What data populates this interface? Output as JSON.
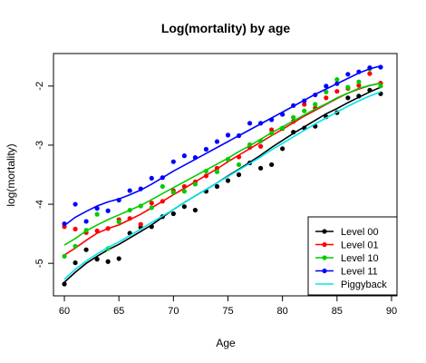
{
  "chart_data": {
    "type": "scatter",
    "title": "Log(mortality) by age",
    "xlabel": "Age",
    "ylabel": "log(mortality)",
    "xlim": [
      59.0,
      90.5
    ],
    "ylim": [
      -5.55,
      -1.45
    ],
    "x_ticks": [
      60,
      65,
      70,
      75,
      80,
      85,
      90
    ],
    "y_ticks": [
      -5,
      -4,
      -3,
      -2
    ],
    "grid": false,
    "legend_position": "bottom-right",
    "series": [
      {
        "name": "Level 00",
        "color": "#000000",
        "points": {
          "x": [
            60,
            61,
            62,
            63,
            64,
            65,
            66,
            67,
            68,
            69,
            70,
            71,
            72,
            73,
            74,
            75,
            76,
            77,
            78,
            79,
            80,
            81,
            82,
            83,
            84,
            85,
            86,
            87,
            88,
            89
          ],
          "y": [
            -5.35,
            -4.99,
            -4.77,
            -4.93,
            -4.97,
            -4.92,
            -4.49,
            -4.39,
            -4.38,
            -4.21,
            -4.16,
            -4.04,
            -4.1,
            -3.78,
            -3.7,
            -3.6,
            -3.5,
            -3.3,
            -3.39,
            -3.33,
            -3.06,
            -2.78,
            -2.71,
            -2.68,
            -2.52,
            -2.45,
            -2.2,
            -2.17,
            -2.07,
            -2.13
          ]
        },
        "line": {
          "x": [
            60,
            61,
            62,
            63,
            64,
            65,
            66,
            67,
            68,
            69,
            70,
            71,
            72,
            73,
            74,
            75,
            76,
            77,
            78,
            79,
            80,
            81,
            82,
            83,
            84,
            85,
            86,
            87,
            88,
            89
          ],
          "y": [
            -5.32,
            -5.15,
            -5.0,
            -4.88,
            -4.77,
            -4.68,
            -4.57,
            -4.46,
            -4.35,
            -4.22,
            -4.09,
            -3.97,
            -3.86,
            -3.75,
            -3.64,
            -3.52,
            -3.41,
            -3.29,
            -3.17,
            -3.04,
            -2.92,
            -2.8,
            -2.69,
            -2.58,
            -2.47,
            -2.38,
            -2.28,
            -2.19,
            -2.1,
            -2.02
          ]
        }
      },
      {
        "name": "Level 01",
        "color": "#ff0000",
        "points": {
          "x": [
            60,
            61,
            62,
            63,
            64,
            65,
            66,
            67,
            68,
            69,
            70,
            71,
            72,
            73,
            74,
            75,
            76,
            77,
            78,
            79,
            80,
            81,
            82,
            83,
            84,
            85,
            86,
            87,
            88,
            89
          ],
          "y": [
            -4.38,
            -4.42,
            -4.48,
            -4.45,
            -4.41,
            -4.26,
            -4.24,
            -4.34,
            -3.98,
            -3.95,
            -3.77,
            -3.7,
            -3.62,
            -3.52,
            -3.39,
            -3.24,
            -3.2,
            -3.04,
            -3.02,
            -2.74,
            -2.72,
            -2.6,
            -2.31,
            -2.37,
            -2.2,
            -2.09,
            -2.04,
            -1.99,
            -1.79,
            -1.95
          ]
        },
        "line": {
          "x": [
            60,
            61,
            62,
            63,
            64,
            65,
            66,
            67,
            68,
            69,
            70,
            71,
            72,
            73,
            74,
            75,
            76,
            77,
            78,
            79,
            80,
            81,
            82,
            83,
            84,
            85,
            86,
            87,
            88,
            89
          ],
          "y": [
            -4.86,
            -4.74,
            -4.61,
            -4.49,
            -4.41,
            -4.35,
            -4.26,
            -4.17,
            -4.06,
            -3.95,
            -3.84,
            -3.73,
            -3.62,
            -3.51,
            -3.4,
            -3.28,
            -3.17,
            -3.06,
            -2.95,
            -2.84,
            -2.73,
            -2.62,
            -2.51,
            -2.41,
            -2.31,
            -2.21,
            -2.12,
            -2.05,
            -1.99,
            -1.95
          ]
        }
      },
      {
        "name": "Level 10",
        "color": "#00cc00",
        "points": {
          "x": [
            60,
            61,
            62,
            63,
            64,
            65,
            66,
            67,
            68,
            69,
            70,
            71,
            72,
            73,
            74,
            75,
            76,
            77,
            78,
            79,
            80,
            81,
            82,
            83,
            84,
            85,
            86,
            87,
            88,
            89
          ],
          "y": [
            -4.88,
            -4.71,
            -4.44,
            -4.17,
            -4.75,
            -4.3,
            -4.1,
            -4.03,
            -4.06,
            -3.7,
            -3.8,
            -3.78,
            -3.66,
            -3.44,
            -3.45,
            -3.24,
            -3.33,
            -2.99,
            -2.93,
            -2.8,
            -2.71,
            -2.53,
            -2.42,
            -2.31,
            -2.1,
            -1.89,
            -2.02,
            -1.93,
            -1.71,
            -2.0
          ]
        },
        "line": {
          "x": [
            60,
            61,
            62,
            63,
            64,
            65,
            66,
            67,
            68,
            69,
            70,
            71,
            72,
            73,
            74,
            75,
            76,
            77,
            78,
            79,
            80,
            81,
            82,
            83,
            84,
            85,
            86,
            87,
            88,
            89
          ],
          "y": [
            -4.69,
            -4.58,
            -4.45,
            -4.35,
            -4.26,
            -4.18,
            -4.1,
            -4.02,
            -3.92,
            -3.82,
            -3.72,
            -3.62,
            -3.52,
            -3.42,
            -3.32,
            -3.22,
            -3.11,
            -3.01,
            -2.9,
            -2.79,
            -2.69,
            -2.59,
            -2.49,
            -2.39,
            -2.3,
            -2.2,
            -2.12,
            -2.04,
            -1.99,
            -1.95
          ]
        }
      },
      {
        "name": "Level 11",
        "color": "#0000ff",
        "points": {
          "x": [
            60,
            61,
            62,
            63,
            64,
            65,
            66,
            67,
            68,
            69,
            70,
            71,
            72,
            73,
            74,
            75,
            76,
            77,
            78,
            79,
            80,
            81,
            82,
            83,
            84,
            85,
            86,
            87,
            88,
            89
          ],
          "y": [
            -4.33,
            -4.0,
            -4.29,
            -4.07,
            -4.11,
            -3.93,
            -3.77,
            -3.74,
            -3.56,
            -3.55,
            -3.28,
            -3.18,
            -3.21,
            -3.07,
            -2.94,
            -2.83,
            -2.84,
            -2.63,
            -2.63,
            -2.57,
            -2.48,
            -2.33,
            -2.25,
            -2.15,
            -2.0,
            -1.96,
            -1.8,
            -1.76,
            -1.69,
            -1.68
          ]
        },
        "line": {
          "x": [
            60,
            61,
            62,
            63,
            64,
            65,
            66,
            67,
            68,
            69,
            70,
            71,
            72,
            73,
            74,
            75,
            76,
            77,
            78,
            79,
            80,
            81,
            82,
            83,
            84,
            85,
            86,
            87,
            88,
            89
          ],
          "y": [
            -4.36,
            -4.22,
            -4.12,
            -4.03,
            -3.96,
            -3.91,
            -3.84,
            -3.76,
            -3.66,
            -3.55,
            -3.44,
            -3.34,
            -3.24,
            -3.14,
            -3.04,
            -2.94,
            -2.84,
            -2.74,
            -2.64,
            -2.54,
            -2.44,
            -2.34,
            -2.24,
            -2.14,
            -2.05,
            -1.96,
            -1.87,
            -1.78,
            -1.71,
            -1.66
          ]
        }
      },
      {
        "name": "Piggyback",
        "color": "#00e5ee",
        "points": null,
        "line": {
          "x": [
            60,
            61,
            62,
            63,
            64,
            65,
            66,
            67,
            68,
            69,
            70,
            71,
            72,
            73,
            74,
            75,
            76,
            77,
            78,
            79,
            80,
            81,
            82,
            83,
            84,
            85,
            86,
            87,
            88,
            89
          ],
          "y": [
            -5.27,
            -5.1,
            -4.96,
            -4.84,
            -4.73,
            -4.64,
            -4.53,
            -4.42,
            -4.31,
            -4.2,
            -4.09,
            -3.97,
            -3.86,
            -3.75,
            -3.64,
            -3.53,
            -3.42,
            -3.31,
            -3.2,
            -3.08,
            -2.97,
            -2.86,
            -2.75,
            -2.64,
            -2.54,
            -2.44,
            -2.34,
            -2.25,
            -2.17,
            -2.1
          ]
        }
      }
    ]
  }
}
